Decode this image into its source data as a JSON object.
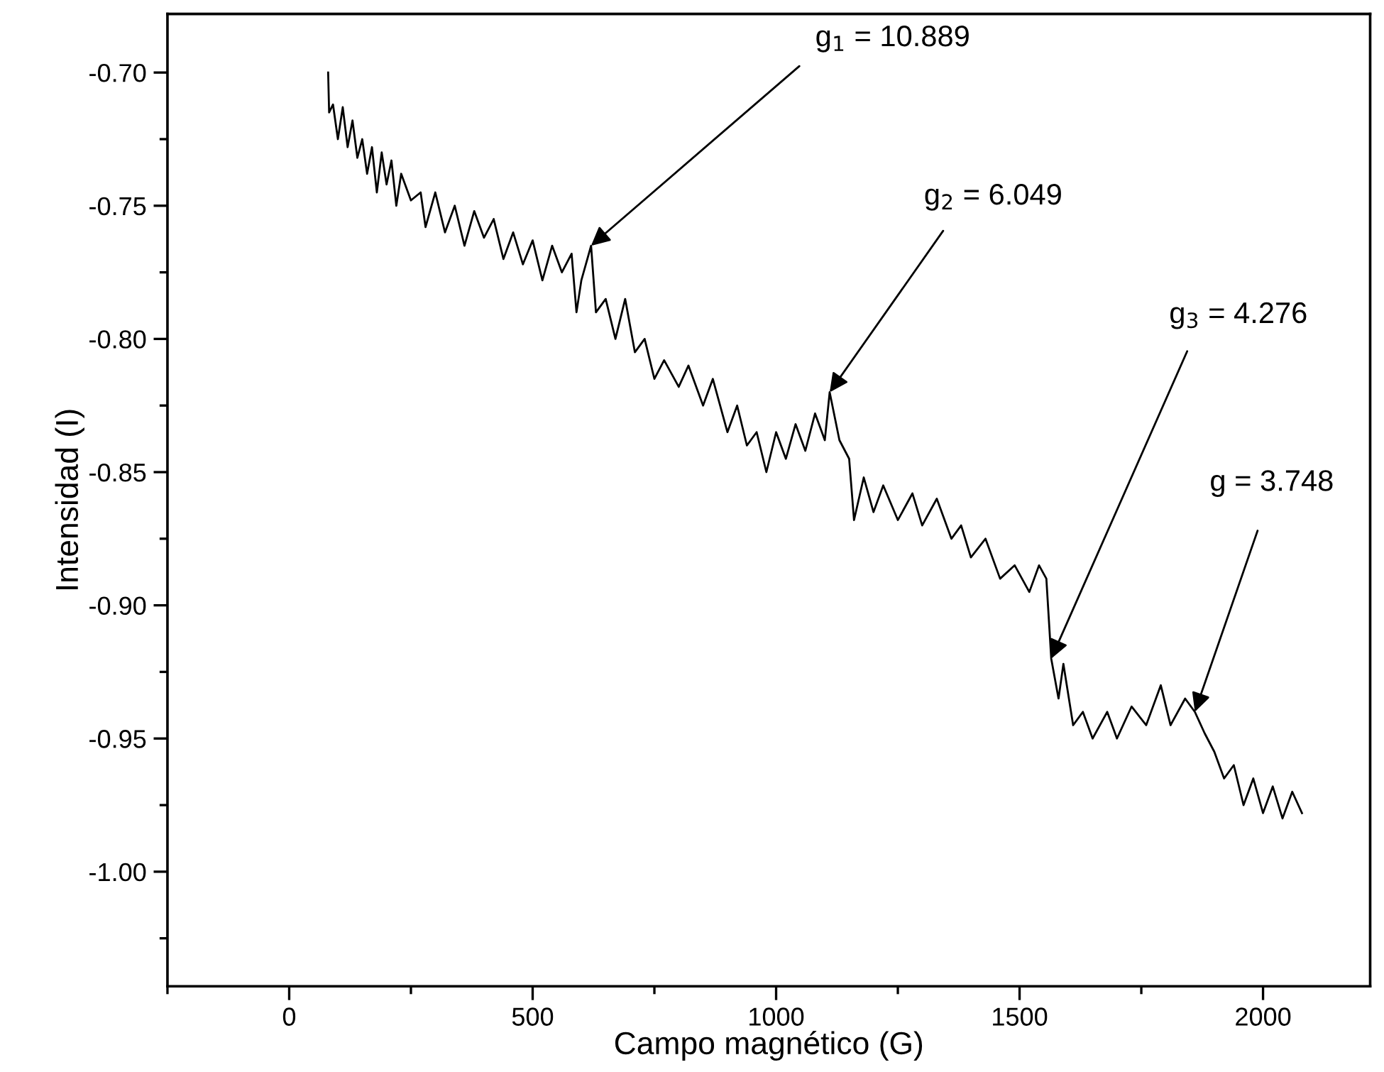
{
  "chart_data": {
    "type": "line",
    "xlabel": "Campo magnético (G)",
    "ylabel": "Intensidad (I)",
    "xlim": [
      -250,
      2220
    ],
    "ylim": [
      -1.043,
      -0.678
    ],
    "xticks": [
      0,
      500,
      1000,
      1500,
      2000
    ],
    "yticks": [
      {
        "value": -1.0,
        "label": "-1.00"
      },
      {
        "value": -0.95,
        "label": "-0.95"
      },
      {
        "value": -0.9,
        "label": "-0.90"
      },
      {
        "value": -0.85,
        "label": "-0.85"
      },
      {
        "value": -0.8,
        "label": "-0.80"
      },
      {
        "value": -0.75,
        "label": "-0.75"
      },
      {
        "value": -0.7,
        "label": "-0.70"
      }
    ],
    "grid": false,
    "marker": "none",
    "line_style": "solid",
    "series": [
      {
        "color": "#000000",
        "x": [
          80,
          82,
          90,
          100,
          110,
          120,
          130,
          140,
          150,
          160,
          170,
          180,
          190,
          200,
          210,
          220,
          230,
          250,
          270,
          280,
          300,
          320,
          340,
          360,
          380,
          400,
          420,
          440,
          460,
          480,
          500,
          520,
          540,
          560,
          580,
          590,
          600,
          620,
          630,
          650,
          670,
          690,
          710,
          730,
          750,
          770,
          800,
          820,
          850,
          870,
          900,
          920,
          940,
          960,
          980,
          1000,
          1020,
          1040,
          1060,
          1080,
          1100,
          1110,
          1130,
          1150,
          1160,
          1180,
          1200,
          1220,
          1250,
          1280,
          1300,
          1330,
          1360,
          1380,
          1400,
          1430,
          1460,
          1490,
          1520,
          1540,
          1555,
          1565,
          1580,
          1590,
          1610,
          1630,
          1650,
          1680,
          1700,
          1730,
          1760,
          1790,
          1810,
          1840,
          1860,
          1880,
          1900,
          1920,
          1940,
          1960,
          1980,
          2000,
          2020,
          2040,
          2060,
          2080
        ],
        "values": [
          -0.7,
          -0.715,
          -0.712,
          -0.725,
          -0.713,
          -0.728,
          -0.718,
          -0.732,
          -0.725,
          -0.738,
          -0.728,
          -0.745,
          -0.73,
          -0.742,
          -0.733,
          -0.75,
          -0.738,
          -0.748,
          -0.745,
          -0.758,
          -0.745,
          -0.76,
          -0.75,
          -0.765,
          -0.752,
          -0.762,
          -0.755,
          -0.77,
          -0.76,
          -0.772,
          -0.763,
          -0.778,
          -0.765,
          -0.775,
          -0.768,
          -0.79,
          -0.778,
          -0.765,
          -0.79,
          -0.785,
          -0.8,
          -0.785,
          -0.805,
          -0.8,
          -0.815,
          -0.808,
          -0.818,
          -0.81,
          -0.825,
          -0.815,
          -0.835,
          -0.825,
          -0.84,
          -0.835,
          -0.85,
          -0.835,
          -0.845,
          -0.832,
          -0.842,
          -0.828,
          -0.838,
          -0.82,
          -0.838,
          -0.845,
          -0.868,
          -0.852,
          -0.865,
          -0.855,
          -0.868,
          -0.858,
          -0.87,
          -0.86,
          -0.875,
          -0.87,
          -0.882,
          -0.875,
          -0.89,
          -0.885,
          -0.895,
          -0.885,
          -0.89,
          -0.92,
          -0.935,
          -0.922,
          -0.945,
          -0.94,
          -0.95,
          -0.94,
          -0.95,
          -0.938,
          -0.945,
          -0.93,
          -0.945,
          -0.935,
          -0.94,
          -0.948,
          -0.955,
          -0.965,
          -0.96,
          -0.975,
          -0.965,
          -0.978,
          -0.968,
          -0.98,
          -0.97,
          -0.978
        ]
      }
    ],
    "annotations": [
      {
        "text": "g$_{1}$ = 10.889",
        "x": 620,
        "y": -0.765
      },
      {
        "text": "g$_{2}$ = 6.049",
        "x": 1110,
        "y": -0.82
      },
      {
        "text": "g$_{3}$ = 4.276",
        "x": 1565,
        "y": -0.92
      },
      {
        "text": "g = 3.748",
        "x": 1860,
        "y": -0.94
      }
    ]
  }
}
